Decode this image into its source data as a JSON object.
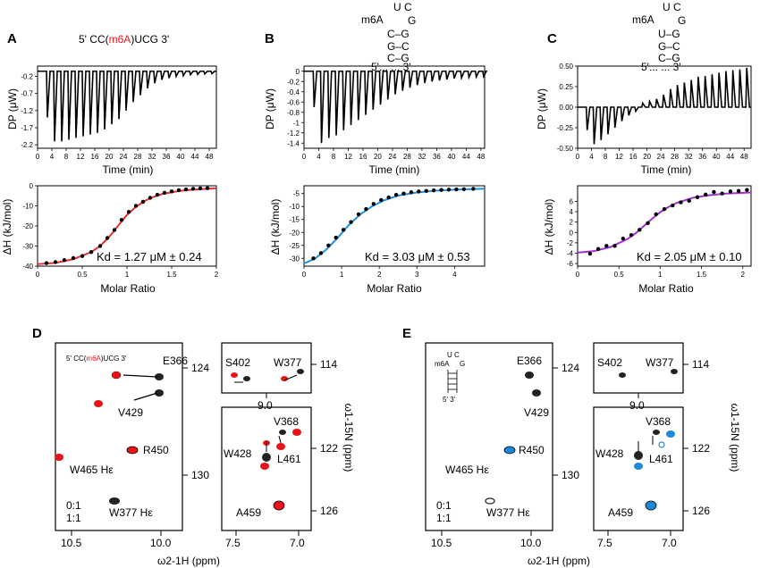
{
  "colors": {
    "red": "#e8141a",
    "blue": "#1e88d8",
    "magenta": "#c020c0",
    "fit_red": "#e53030",
    "fit_blue": "#2090e0",
    "fit_magenta": "#a030d0"
  },
  "panelA": {
    "letter": "A",
    "sequence_prefix": "5' CC(",
    "sequence_mod": "m6A",
    "sequence_suffix": ")UCG 3'",
    "kd": "Kd = 1.27 μM ± 0.24"
  },
  "panelB": {
    "letter": "B",
    "hairpin": {
      "loop": "U C",
      "mod": "m6A",
      "g": "G",
      "pair1": "C–G",
      "pair2": "G–C",
      "pair3": "C–G",
      "ends": "5'... ... 3'"
    },
    "kd": "Kd = 3.03 μM ± 0.53"
  },
  "panelC": {
    "letter": "C",
    "hairpin": {
      "loop": "U C",
      "mod": "m6A",
      "g": "G",
      "pair0": "U–G",
      "pair1": "G–C",
      "pair2": "C–G",
      "ends": "5'... ... 3'"
    },
    "kd": "Kd = 2.05 μM ± 0.10"
  },
  "axes": {
    "dp_label": "DP (μW)",
    "time_label": "Time (min)",
    "dh_label": "ΔH (kJ/mol)",
    "ratio_label": "Molar Ratio"
  },
  "chart_data": [
    {
      "id": "A-thermogram",
      "type": "line",
      "xlabel": "Time (min)",
      "ylabel": "DP (μW)",
      "xlim": [
        0,
        50
      ],
      "ylim": [
        -2.3,
        0.1
      ],
      "xticks": [
        0,
        4,
        8,
        12,
        16,
        20,
        24,
        28,
        32,
        36,
        40,
        44,
        48
      ],
      "yticks": [
        -0.2,
        -0.7,
        -1.2,
        -1.7,
        -2.2
      ],
      "injection_times": [
        2.5,
        4.5,
        6.5,
        8.5,
        10.5,
        12.5,
        14.5,
        16.5,
        18.5,
        20.5,
        22.5,
        24.5,
        26.5,
        28.5,
        30.5,
        32.5,
        34.5,
        36.5,
        38.5,
        40.5,
        42.5,
        44.5,
        46.5,
        48.5
      ],
      "peak_values": [
        -1.4,
        -2.1,
        -2.1,
        -2.05,
        -2.0,
        -1.95,
        -1.9,
        -1.85,
        -1.75,
        -1.6,
        -1.45,
        -1.2,
        -0.95,
        -0.75,
        -0.55,
        -0.4,
        -0.3,
        -0.25,
        -0.2,
        -0.18,
        -0.15,
        -0.14,
        -0.13,
        -0.12
      ]
    },
    {
      "id": "A-isotherm",
      "type": "scatter",
      "xlabel": "Molar Ratio",
      "ylabel": "ΔH (kJ/mol)",
      "xlim": [
        0,
        2
      ],
      "ylim": [
        -40,
        0
      ],
      "xticks": [
        0,
        0.5,
        1,
        1.5,
        2
      ],
      "yticks": [
        0,
        -10,
        -20,
        -30,
        -40
      ],
      "x": [
        0.1,
        0.2,
        0.3,
        0.4,
        0.5,
        0.6,
        0.7,
        0.78,
        0.86,
        0.94,
        1.02,
        1.1,
        1.18,
        1.26,
        1.34,
        1.42,
        1.5,
        1.58,
        1.66,
        1.74,
        1.82,
        1.9
      ],
      "y": [
        -38.5,
        -38,
        -37,
        -36,
        -35,
        -33,
        -30,
        -26,
        -22,
        -17,
        -13,
        -10,
        -8,
        -6,
        -4.5,
        -3.5,
        -2.8,
        -2.2,
        -1.8,
        -1.5,
        -1.3,
        -1.2
      ],
      "fit_x": [
        0,
        0.2,
        0.4,
        0.6,
        0.7,
        0.8,
        0.9,
        1.0,
        1.1,
        1.2,
        1.3,
        1.4,
        1.6,
        1.8,
        2.0
      ],
      "fit_y": [
        -39,
        -38.4,
        -36.5,
        -33,
        -30,
        -25.5,
        -20,
        -14.5,
        -10.5,
        -7.5,
        -5.5,
        -4,
        -2.5,
        -1.7,
        -1.3
      ]
    },
    {
      "id": "B-thermogram",
      "type": "line",
      "xlabel": "Time (min)",
      "ylabel": "DP (μW)",
      "xlim": [
        0,
        49
      ],
      "ylim": [
        -1.5,
        0.1
      ],
      "xticks": [
        0,
        4,
        8,
        12,
        16,
        20,
        24,
        28,
        32,
        36,
        40,
        44,
        48
      ],
      "yticks": [
        0.0,
        -0.2,
        -0.4,
        -0.6,
        -0.8,
        -1.0,
        -1.2,
        -1.4
      ],
      "injection_times": [
        2.5,
        4.5,
        6.5,
        8.5,
        10.5,
        12.5,
        14.5,
        16.5,
        18.5,
        20.5,
        22.5,
        24.5,
        26.5,
        28.5,
        30.5,
        32.5,
        34.5,
        36.5,
        38.5,
        40.5,
        42.5,
        44.5,
        46.5,
        48.5
      ],
      "peak_values": [
        -0.7,
        -1.4,
        -1.3,
        -1.25,
        -1.15,
        -1.05,
        -0.95,
        -0.85,
        -0.75,
        -0.65,
        -0.55,
        -0.45,
        -0.38,
        -0.32,
        -0.27,
        -0.23,
        -0.2,
        -0.18,
        -0.16,
        -0.14,
        -0.13,
        -0.12,
        -0.11,
        -0.1
      ]
    },
    {
      "id": "B-isotherm",
      "type": "scatter",
      "xlabel": "Molar Ratio",
      "ylabel": "ΔH (kJ/mol)",
      "xlim": [
        0,
        4.8
      ],
      "ylim": [
        -33,
        -2
      ],
      "xticks": [
        0,
        1,
        2,
        3,
        4
      ],
      "yticks": [
        -5,
        -10,
        -15,
        -20,
        -25,
        -30
      ],
      "x": [
        0.25,
        0.45,
        0.65,
        0.85,
        1.05,
        1.25,
        1.45,
        1.65,
        1.85,
        2.05,
        2.25,
        2.45,
        2.65,
        2.85,
        3.05,
        3.25,
        3.45,
        3.65,
        3.85,
        4.05,
        4.25,
        4.5
      ],
      "y": [
        -30,
        -28,
        -25,
        -22,
        -19,
        -16,
        -13,
        -11,
        -9,
        -7.5,
        -6.5,
        -5.5,
        -5,
        -4.5,
        -4.2,
        -4,
        -3.8,
        -3.6,
        -3.5,
        -3.4,
        -3.3,
        -3.2
      ],
      "fit_x": [
        0,
        0.3,
        0.6,
        0.9,
        1.2,
        1.5,
        1.8,
        2.1,
        2.5,
        3.0,
        3.5,
        4.0,
        4.8
      ],
      "fit_y": [
        -32,
        -30,
        -26.5,
        -22,
        -17,
        -13,
        -10,
        -7.8,
        -5.8,
        -4.6,
        -3.9,
        -3.5,
        -3.1
      ]
    },
    {
      "id": "C-thermogram",
      "type": "line",
      "xlabel": "Time (min)",
      "ylabel": "DP (μW)",
      "xlim": [
        0,
        50
      ],
      "ylim": [
        -0.5,
        0.5
      ],
      "xticks": [
        0,
        4,
        8,
        12,
        16,
        20,
        24,
        28,
        32,
        36,
        40,
        44,
        48
      ],
      "yticks": [
        0.5,
        0.25,
        0.0,
        -0.25,
        -0.5
      ],
      "yticklabels": [
        "0.50",
        "0.25",
        "0.00",
        "-0.25",
        "-0.50"
      ],
      "injection_times": [
        2.5,
        4.5,
        6.5,
        8.5,
        10.5,
        12.5,
        14.5,
        16.5,
        18.5,
        20.5,
        22.5,
        24.5,
        26.5,
        28.5,
        30.5,
        32.5,
        34.5,
        36.5,
        38.5,
        40.5,
        42.5,
        44.5,
        46.5,
        48.5
      ],
      "peak_values": [
        -0.28,
        -0.45,
        -0.4,
        -0.33,
        -0.25,
        -0.17,
        -0.1,
        -0.05,
        0.05,
        0.07,
        0.1,
        0.15,
        0.22,
        0.27,
        0.3,
        0.33,
        0.37,
        0.38,
        0.4,
        0.42,
        0.44,
        0.45,
        0.46,
        0.48
      ]
    },
    {
      "id": "C-isotherm",
      "type": "scatter",
      "xlabel": "Molar Ratio",
      "ylabel": "ΔH (kJ/mol)",
      "xlim": [
        0,
        2.1
      ],
      "ylim": [
        -6.5,
        9
      ],
      "xticks": [
        0,
        0.5,
        1,
        1.5,
        2
      ],
      "yticks": [
        6,
        4,
        2,
        0,
        -2,
        -4,
        -6
      ],
      "x": [
        0.15,
        0.25,
        0.35,
        0.45,
        0.55,
        0.65,
        0.75,
        0.85,
        0.95,
        1.05,
        1.15,
        1.25,
        1.35,
        1.45,
        1.55,
        1.65,
        1.75,
        1.85,
        1.95,
        2.05
      ],
      "y": [
        -4.1,
        -3.2,
        -2.6,
        -2.6,
        -1.2,
        -0.5,
        0.5,
        1.8,
        3.5,
        4.5,
        5.2,
        5.8,
        6.1,
        6.8,
        7.3,
        7.8,
        7.5,
        7.9,
        8.0,
        8.2
      ],
      "fit_x": [
        0,
        0.2,
        0.4,
        0.6,
        0.7,
        0.8,
        0.9,
        1.0,
        1.1,
        1.2,
        1.4,
        1.6,
        1.8,
        2.1
      ],
      "fit_y": [
        -3.9,
        -3.6,
        -2.8,
        -1.3,
        -0.2,
        1.2,
        2.6,
        3.9,
        4.9,
        5.7,
        6.7,
        7.2,
        7.5,
        7.7
      ]
    }
  ],
  "nmr": {
    "xlabel": "ω2-1H (ppm)",
    "ylabel": "ω1-15N (ppm)",
    "left_xticks": [
      "10.5",
      "10.0"
    ],
    "right_xticks": [
      "7.5",
      "7.0"
    ],
    "top_yticks": [
      "114"
    ],
    "mid_label": "9.0",
    "yticks_left": [
      "124",
      "130"
    ],
    "yticks_right": [
      "122",
      "126"
    ],
    "D": {
      "letter": "D",
      "sample_prefix": "5' CC(",
      "sample_mod": "m6A",
      "sample_suffix": ")UCG 3'",
      "legend_black": "0:1",
      "legend_colored": "1:1",
      "labels": {
        "E366": "E366",
        "V429": "V429",
        "R450": "R450",
        "W465": "W465 Hε",
        "W377he": "W377 Hε",
        "S402": "S402",
        "W377": "W377",
        "V368": "V368",
        "W428": "W428",
        "L461": "L461",
        "A459": "A459"
      }
    },
    "E": {
      "letter": "E",
      "hairpin_loop": "U C",
      "hairpin_mod": "m6A",
      "hairpin_g": "G",
      "hairpin_ends": "5'   3'",
      "legend_black": "0:1",
      "legend_colored": "1:1",
      "labels": {
        "E366": "E366",
        "V429": "V429",
        "R450": "R450",
        "W465": "W465 Hε",
        "W377he": "W377 Hε",
        "S402": "S402",
        "W377": "W377",
        "V368": "V368",
        "W428": "W428",
        "L461": "L461",
        "A459": "A459"
      }
    }
  }
}
